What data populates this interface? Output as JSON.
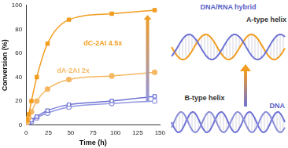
{
  "chart_data": {
    "type": "scatter",
    "x_label": "Time (h)",
    "y_label": "Conversion (%)",
    "x": [
      1,
      3,
      6,
      12,
      24,
      48,
      96,
      144
    ],
    "series": [
      {
        "color": "#f39c1f",
        "marker": "square",
        "line_style": "solid",
        "values": [
          4,
          9,
          20,
          40,
          68,
          88,
          93,
          96
        ]
      },
      {
        "color": "#f5b862",
        "marker": "circle",
        "line_style": "solid",
        "values": [
          2,
          6,
          11,
          20,
          30,
          38,
          41,
          44
        ]
      },
      {
        "color": "#6e72d4",
        "marker": "open square",
        "line_style": "solid",
        "values": [
          1,
          2,
          4,
          7,
          12,
          17,
          20,
          24
        ]
      },
      {
        "color": "#9296e0",
        "marker": "open circle",
        "line_style": "solid",
        "values": [
          1,
          2,
          3,
          6,
          10,
          15,
          18,
          20
        ]
      }
    ],
    "xlim": [
      0,
      150
    ],
    "xticks": [
      0,
      25,
      50,
      75,
      100,
      125,
      150
    ],
    "ylim": [
      0,
      100
    ],
    "yticks": [
      0,
      20,
      40,
      60,
      80,
      100
    ],
    "grid": false,
    "annotations": [
      {
        "text": "dC-2AI 4.5x",
        "color": "#f39c1f"
      },
      {
        "text": "dA-2AI 2x",
        "color": "#f5b862"
      }
    ]
  },
  "diagram": {
    "upper": {
      "title": "DNA/RNA hybrid",
      "caption": "A-type helix"
    },
    "lower": {
      "caption": "B-type helix",
      "title": "DNA"
    }
  }
}
